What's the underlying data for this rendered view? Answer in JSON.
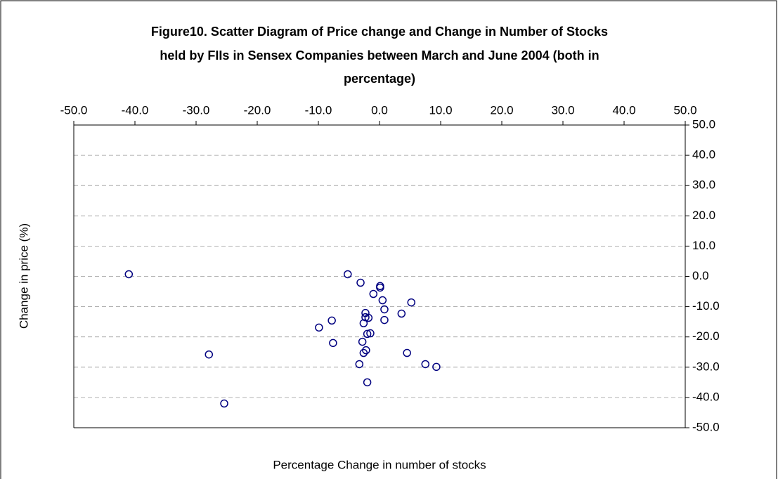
{
  "chart_data": {
    "type": "scatter",
    "title": [
      "Figure10. Scatter Diagram of Price change and Change in Number of Stocks",
      "held by FIIs in Sensex Companies between  March and June 2004 (both in",
      "percentage)"
    ],
    "x_label": "Percentage Change in number of stocks",
    "y_label": "Change in price (%)",
    "color": "#000080",
    "grid": true,
    "xlim": [
      -50,
      50
    ],
    "ylim": [
      -50,
      50
    ],
    "xticks": [
      {
        "value": -50,
        "label": "-50.0"
      },
      {
        "value": -40,
        "label": "-40.0"
      },
      {
        "value": -30,
        "label": "-30.0"
      },
      {
        "value": -20,
        "label": "-20.0"
      },
      {
        "value": -10,
        "label": "-10.0"
      },
      {
        "value": 0,
        "label": "0.0"
      },
      {
        "value": 10,
        "label": "10.0"
      },
      {
        "value": 20,
        "label": "20.0"
      },
      {
        "value": 30,
        "label": "30.0"
      },
      {
        "value": 40,
        "label": "40.0"
      },
      {
        "value": 50,
        "label": "50.0"
      }
    ],
    "yticks": [
      {
        "value": 50,
        "label": "50.0"
      },
      {
        "value": 40,
        "label": "40.0"
      },
      {
        "value": 30,
        "label": "30.0"
      },
      {
        "value": 20,
        "label": "20.0"
      },
      {
        "value": 10,
        "label": "10.0"
      },
      {
        "value": 0,
        "label": "0.0"
      },
      {
        "value": -10,
        "label": "-10.0"
      },
      {
        "value": -20,
        "label": "-20.0"
      },
      {
        "value": -30,
        "label": "-30.0"
      },
      {
        "value": -40,
        "label": "-40.0"
      },
      {
        "value": -50,
        "label": "-50.0"
      }
    ],
    "x": [
      -41.0,
      -5.2,
      -3.1,
      0.1,
      0.1,
      -1.0,
      0.5,
      5.2,
      0.8,
      -2.3,
      3.6,
      -2.3,
      -1.8,
      0.8,
      -7.8,
      -2.6,
      -9.9,
      -1.5,
      -2.0,
      -2.8,
      -7.6,
      -2.2,
      -2.6,
      4.5,
      -27.9,
      -3.3,
      7.5,
      9.3,
      -2.0,
      -25.4
    ],
    "y": [
      0.7,
      0.7,
      -2.1,
      -3.2,
      -3.7,
      -5.8,
      -7.9,
      -8.6,
      -10.9,
      -12.1,
      -12.3,
      -13.5,
      -13.7,
      -14.4,
      -14.6,
      -15.5,
      -16.9,
      -18.8,
      -19.0,
      -21.6,
      -22.0,
      -24.4,
      -25.3,
      -25.3,
      -25.8,
      -29.0,
      -29.0,
      -29.9,
      -35.0,
      -42.0
    ]
  }
}
